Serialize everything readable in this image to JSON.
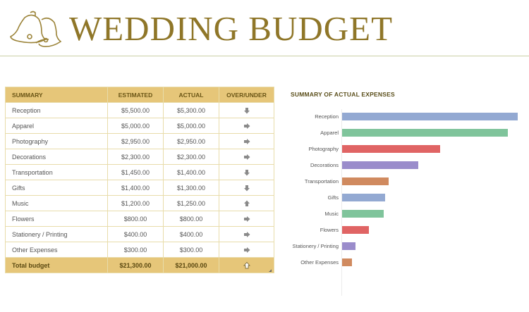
{
  "header": {
    "title": "WEDDING BUDGET",
    "icon": "wedding-bells-icon",
    "title_color": "#8f7628"
  },
  "table": {
    "columns": [
      "SUMMARY",
      "ESTIMATED",
      "ACTUAL",
      "OVER/UNDER"
    ],
    "rows": [
      {
        "summary": "Reception",
        "estimated": "$5,500.00",
        "actual": "$5,300.00",
        "status": "down"
      },
      {
        "summary": "Apparel",
        "estimated": "$5,000.00",
        "actual": "$5,000.00",
        "status": "right"
      },
      {
        "summary": "Photography",
        "estimated": "$2,950.00",
        "actual": "$2,950.00",
        "status": "right"
      },
      {
        "summary": "Decorations",
        "estimated": "$2,300.00",
        "actual": "$2,300.00",
        "status": "right"
      },
      {
        "summary": "Transportation",
        "estimated": "$1,450.00",
        "actual": "$1,400.00",
        "status": "down"
      },
      {
        "summary": "Gifts",
        "estimated": "$1,400.00",
        "actual": "$1,300.00",
        "status": "down"
      },
      {
        "summary": "Music",
        "estimated": "$1,200.00",
        "actual": "$1,250.00",
        "status": "up"
      },
      {
        "summary": "Flowers",
        "estimated": "$800.00",
        "actual": "$800.00",
        "status": "right"
      },
      {
        "summary": "Stationery / Printing",
        "estimated": "$400.00",
        "actual": "$400.00",
        "status": "right"
      },
      {
        "summary": "Other Expenses",
        "estimated": "$300.00",
        "actual": "$300.00",
        "status": "right"
      }
    ],
    "total": {
      "summary": "Total budget",
      "estimated": "$21,300.00",
      "actual": "$21,000.00",
      "status": "up-outline"
    },
    "header_color": "#e6c679",
    "border_color": "#e8dcaa"
  },
  "chart_data": {
    "type": "bar",
    "orientation": "horizontal",
    "title": "SUMMARY OF ACTUAL EXPENSES",
    "categories": [
      "Reception",
      "Apparel",
      "Photography",
      "Decorations",
      "Transportation",
      "Gifts",
      "Music",
      "Flowers",
      "Stationery / Printing",
      "Other Expenses"
    ],
    "values": [
      5300,
      5000,
      2950,
      2300,
      1400,
      1300,
      1250,
      800,
      400,
      300
    ],
    "colors": [
      "#93a9d2",
      "#7fc49b",
      "#e06464",
      "#9a8ccb",
      "#d08a5f",
      "#93a9d2",
      "#7fc49b",
      "#e06464",
      "#9a8ccb",
      "#d08a5f"
    ],
    "xlabel": "",
    "ylabel": "",
    "grid": false,
    "legend": "none"
  }
}
